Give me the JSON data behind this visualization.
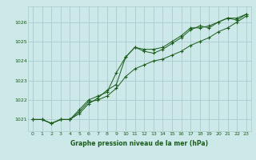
{
  "title": "Graphe pression niveau de la mer (hPa)",
  "bg_color": "#cce8e8",
  "grid_color": "#aacccc",
  "line_color": "#1a5c1a",
  "xlim": [
    -0.5,
    23.5
  ],
  "ylim": [
    1020.4,
    1026.8
  ],
  "yticks": [
    1021,
    1022,
    1023,
    1024,
    1025,
    1026
  ],
  "xticks": [
    0,
    1,
    2,
    3,
    4,
    5,
    6,
    7,
    8,
    9,
    10,
    11,
    12,
    13,
    14,
    15,
    16,
    17,
    18,
    19,
    20,
    21,
    22,
    23
  ],
  "series1": [
    1021.0,
    1021.0,
    1020.8,
    1021.0,
    1021.0,
    1021.4,
    1021.9,
    1022.0,
    1022.2,
    1022.6,
    1023.2,
    1023.6,
    1023.8,
    1024.0,
    1024.1,
    1024.3,
    1024.5,
    1024.8,
    1025.0,
    1025.2,
    1025.5,
    1025.7,
    1026.0,
    1026.3
  ],
  "series2": [
    1021.0,
    1021.0,
    1020.8,
    1021.0,
    1021.0,
    1021.5,
    1022.0,
    1022.2,
    1022.4,
    1023.4,
    1024.2,
    1024.7,
    1024.6,
    1024.6,
    1024.7,
    1025.0,
    1025.3,
    1025.7,
    1025.7,
    1025.8,
    1026.0,
    1026.2,
    1026.2,
    1026.4
  ],
  "series3": [
    1021.0,
    1021.0,
    1020.8,
    1021.0,
    1021.0,
    1021.3,
    1021.8,
    1022.1,
    1022.5,
    1022.8,
    1024.2,
    1024.7,
    1024.5,
    1024.4,
    1024.6,
    1024.9,
    1025.2,
    1025.6,
    1025.8,
    1025.7,
    1026.0,
    1026.2,
    1026.1,
    1026.4
  ]
}
